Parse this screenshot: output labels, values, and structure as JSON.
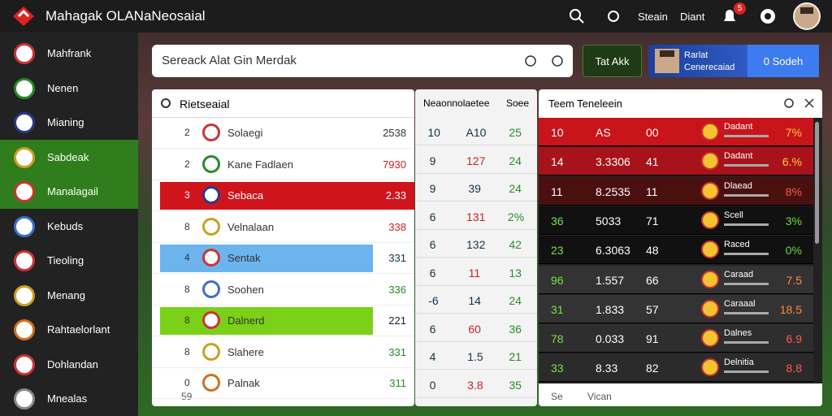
{
  "header": {
    "title": "Mahagak OLANaNeosaial",
    "links": [
      "Steain",
      "Diant"
    ],
    "badge": "5"
  },
  "sidebar": {
    "items": [
      "Mahfrank",
      "Nenen",
      "Mianing",
      "Sabdeak",
      "Manalagail",
      "Kebuds",
      "Tieoling",
      "Menang",
      "Rahtaelorlant",
      "Dohlandan",
      "Mnealas"
    ]
  },
  "search": {
    "placeholder": "Sereack Alat Gin Merdak"
  },
  "button": "Tat Akk",
  "profile": {
    "name": "Rarlat",
    "subtitle": "Cenerecaiad",
    "select": "0 Sodeh"
  },
  "leaderboard": {
    "title": "Rietseaial",
    "rows": [
      [
        "2",
        "Solaegi",
        "2538"
      ],
      [
        "2",
        "Kane Fadlaen",
        "7930"
      ],
      [
        "3",
        "Sebaca",
        "2.33"
      ],
      [
        "8",
        "Velnalaan",
        "338"
      ],
      [
        "4",
        "Sentak",
        "331"
      ],
      [
        "8",
        "Soohen",
        "336"
      ],
      [
        "8",
        "Dalnerd",
        "221"
      ],
      [
        "8",
        "Slahere",
        "331"
      ],
      [
        "0",
        "Palnak",
        "311"
      ]
    ],
    "footer": "59"
  },
  "stats": {
    "headers": [
      "Neaonnolaetee",
      "Soee"
    ],
    "rows": [
      [
        "10",
        "A10",
        "25"
      ],
      [
        "9",
        "127",
        "24"
      ],
      [
        "9",
        "39",
        "24"
      ],
      [
        "6",
        "131",
        "2%"
      ],
      [
        "6",
        "132",
        "42"
      ],
      [
        "6",
        "11",
        "13"
      ],
      [
        "-6",
        "14",
        "24"
      ],
      [
        "6",
        "60",
        "36"
      ],
      [
        "4",
        "1.5",
        "21"
      ],
      [
        "0",
        "3.8",
        "35"
      ]
    ]
  },
  "team": {
    "title": "Teem Teneleein",
    "rows": [
      [
        "10",
        "AS",
        "00",
        "Dadant",
        "7%"
      ],
      [
        "14",
        "3.3306",
        "41",
        "Dadant",
        "6.%"
      ],
      [
        "11",
        "8.2535",
        "11",
        "Dlaead",
        "8%"
      ],
      [
        "36",
        "5033",
        "71",
        "Scell",
        "3%"
      ],
      [
        "23",
        "6.3063",
        "48",
        "Raced",
        "0%"
      ],
      [
        "96",
        "1.557",
        "66",
        "Caraad",
        "7.5"
      ],
      [
        "31",
        "1.833",
        "57",
        "Caraaal",
        "18.5"
      ],
      [
        "78",
        "0.033",
        "91",
        "Dalnes",
        "6.9"
      ],
      [
        "33",
        "8.33",
        "82",
        "Delnitia",
        "8.8"
      ]
    ],
    "footer": [
      "Se",
      "Vican"
    ]
  }
}
